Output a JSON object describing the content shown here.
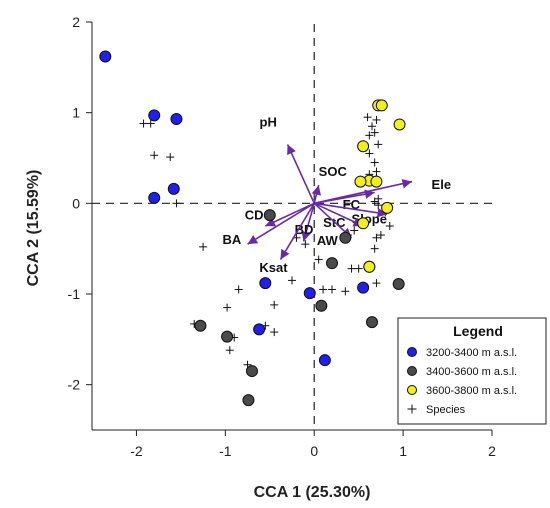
{
  "colors": {
    "group1": "#1f1ff0",
    "group2": "#4a4a4a",
    "group3": "#f2ef1a",
    "vector": "#6a2aa8",
    "species": "#111111"
  },
  "chart_data": {
    "type": "scatter",
    "xlabel": "CCA 1 (25.30%)",
    "ylabel": "CCA 2 (15.59%)",
    "xlim": [
      -2.5,
      2.0
    ],
    "ylim": [
      -2.5,
      2.0
    ],
    "x_ticks": [
      -2,
      -1,
      0,
      1,
      2
    ],
    "y_ticks": [
      2,
      1,
      0,
      -1,
      -2
    ],
    "x_tick_labels": [
      "-2",
      "-1",
      "0",
      "1",
      "2"
    ],
    "y_tick_labels": [
      "2",
      "1",
      "0",
      "-1",
      "-2"
    ],
    "zero_lines": "dashed",
    "grid": false,
    "legend": {
      "title": "Legend",
      "position": "bottom-right",
      "entries": [
        "3200-3400 m a.s.l.",
        "3400-3600 m a.s.l.",
        "3600-3800 m a.s.l.",
        "Species"
      ]
    },
    "series": [
      {
        "name": "3200-3400 m a.s.l.",
        "marker": "circle",
        "points": [
          [
            -2.35,
            1.62
          ],
          [
            -1.8,
            0.97
          ],
          [
            -1.55,
            0.93
          ],
          [
            -1.58,
            0.16
          ],
          [
            -1.8,
            0.06
          ],
          [
            -0.55,
            -0.88
          ],
          [
            -0.62,
            -1.39
          ],
          [
            -0.05,
            -0.99
          ],
          [
            0.12,
            -1.73
          ],
          [
            0.55,
            -0.93
          ]
        ]
      },
      {
        "name": "3400-3600 m a.s.l.",
        "marker": "circle",
        "points": [
          [
            -0.5,
            -0.13
          ],
          [
            0.2,
            -0.66
          ],
          [
            0.08,
            -1.13
          ],
          [
            -1.28,
            -1.35
          ],
          [
            -0.98,
            -1.47
          ],
          [
            -0.7,
            -1.85
          ],
          [
            -0.74,
            -2.17
          ],
          [
            0.65,
            -1.31
          ],
          [
            0.95,
            -0.89
          ],
          [
            0.62,
            -0.7
          ],
          [
            0.35,
            -0.38
          ]
        ]
      },
      {
        "name": "3600-3800 m a.s.l.",
        "marker": "circle",
        "points": [
          [
            0.72,
            1.08
          ],
          [
            0.76,
            1.08
          ],
          [
            0.96,
            0.87
          ],
          [
            0.55,
            0.63
          ],
          [
            0.62,
            0.25
          ],
          [
            0.52,
            0.24
          ],
          [
            0.7,
            0.24
          ],
          [
            0.82,
            -0.05
          ],
          [
            0.55,
            -0.22
          ],
          [
            0.62,
            -0.7
          ]
        ]
      },
      {
        "name": "Species",
        "marker": "plus",
        "points": [
          [
            -1.92,
            0.88
          ],
          [
            -1.84,
            0.88
          ],
          [
            -1.8,
            0.53
          ],
          [
            -1.62,
            0.51
          ],
          [
            -1.55,
            0.0
          ],
          [
            -1.25,
            -0.48
          ],
          [
            -1.35,
            -1.33
          ],
          [
            -1.0,
            -1.47
          ],
          [
            -0.95,
            -1.62
          ],
          [
            -0.9,
            -1.48
          ],
          [
            -0.75,
            -1.78
          ],
          [
            -0.72,
            -1.83
          ],
          [
            -0.98,
            -1.15
          ],
          [
            -0.85,
            -0.95
          ],
          [
            -0.45,
            -1.12
          ],
          [
            -0.45,
            -1.42
          ],
          [
            -0.55,
            -1.35
          ],
          [
            -0.25,
            -0.85
          ],
          [
            -0.2,
            -0.38
          ],
          [
            -0.1,
            -0.45
          ],
          [
            0.05,
            -0.62
          ],
          [
            0.1,
            -0.95
          ],
          [
            0.2,
            -0.95
          ],
          [
            0.35,
            -0.97
          ],
          [
            0.42,
            -0.72
          ],
          [
            0.5,
            -0.72
          ],
          [
            0.38,
            -0.35
          ],
          [
            0.45,
            -0.3
          ],
          [
            0.68,
            -0.5
          ],
          [
            0.7,
            -0.38
          ],
          [
            0.75,
            -0.35
          ],
          [
            0.85,
            -0.25
          ],
          [
            0.7,
            -0.88
          ],
          [
            0.62,
            -0.72
          ],
          [
            0.6,
            0.95
          ],
          [
            0.65,
            0.85
          ],
          [
            0.7,
            0.92
          ],
          [
            0.62,
            0.75
          ],
          [
            0.68,
            0.78
          ],
          [
            0.72,
            0.65
          ],
          [
            0.62,
            0.55
          ],
          [
            0.68,
            0.45
          ],
          [
            0.7,
            0.35
          ],
          [
            0.62,
            0.32
          ],
          [
            0.65,
            0.27
          ],
          [
            0.7,
            0.28
          ],
          [
            0.72,
            0.05
          ],
          [
            0.68,
            0.02
          ],
          [
            0.72,
            -0.02
          ],
          [
            0.8,
            -0.1
          ]
        ]
      }
    ],
    "vectors": [
      {
        "label": "pH",
        "x": -0.3,
        "y": 0.65,
        "label_x": -0.42,
        "label_y": 0.85,
        "anchor": "end"
      },
      {
        "label": "SOC",
        "x": 0.05,
        "y": 0.2,
        "label_x": 0.05,
        "label_y": 0.3,
        "anchor": "start"
      },
      {
        "label": "Ele",
        "x": 1.1,
        "y": 0.24,
        "label_x": 1.32,
        "label_y": 0.16,
        "anchor": "start"
      },
      {
        "label": "FC",
        "x": 0.68,
        "y": 0.12,
        "label_x": 0.32,
        "label_y": -0.06,
        "anchor": "start"
      },
      {
        "label": "Slope",
        "x": 0.82,
        "y": -0.12,
        "label_x": 0.42,
        "label_y": -0.22,
        "anchor": "start"
      },
      {
        "label": "StC",
        "x": 0.55,
        "y": -0.25,
        "label_x": 0.1,
        "label_y": -0.26,
        "anchor": "start"
      },
      {
        "label": "AW",
        "x": 0.42,
        "y": -0.38,
        "label_x": 0.03,
        "label_y": -0.46,
        "anchor": "start"
      },
      {
        "label": "BD",
        "x": -0.12,
        "y": -0.42,
        "label_x": -0.22,
        "label_y": -0.34,
        "anchor": "start"
      },
      {
        "label": "CD",
        "x": -0.55,
        "y": -0.25,
        "label_x": -0.57,
        "label_y": -0.18,
        "anchor": "end"
      },
      {
        "label": "BA",
        "x": -0.75,
        "y": -0.45,
        "label_x": -0.82,
        "label_y": -0.45,
        "anchor": "end"
      },
      {
        "label": "Ksat",
        "x": -0.38,
        "y": -0.62,
        "label_x": -0.3,
        "label_y": -0.76,
        "anchor": "end"
      }
    ]
  }
}
